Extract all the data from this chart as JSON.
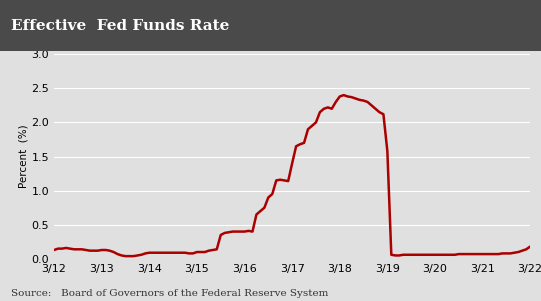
{
  "title": "Effective  Fed Funds Rate",
  "ylabel": "Percent  (%)",
  "source_text": "Source:   Board of Governors of the Federal Reserve System",
  "title_bg_color": "#4a4a4a",
  "title_text_color": "#ffffff",
  "line_color": "#aa0000",
  "plot_bg_color": "#e0e0e0",
  "axes_bg_color": "#e0e0e0",
  "grid_color": "#ffffff",
  "ylim": [
    0.0,
    3.0
  ],
  "yticks": [
    0.0,
    0.5,
    1.0,
    1.5,
    2.0,
    2.5,
    3.0
  ],
  "xtick_labels": [
    "3/12",
    "3/13",
    "3/14",
    "3/15",
    "3/16",
    "3/17",
    "3/18",
    "3/19",
    "3/20",
    "3/21",
    "3/22"
  ],
  "x_values": [
    0,
    0.083,
    0.167,
    0.25,
    0.333,
    0.417,
    0.5,
    0.583,
    0.667,
    0.75,
    0.833,
    0.917,
    1.0,
    1.083,
    1.167,
    1.25,
    1.333,
    1.417,
    1.5,
    1.583,
    1.667,
    1.75,
    1.833,
    1.917,
    2.0,
    2.083,
    2.167,
    2.25,
    2.333,
    2.417,
    2.5,
    2.583,
    2.667,
    2.75,
    2.833,
    2.917,
    3.0,
    3.083,
    3.167,
    3.25,
    3.333,
    3.417,
    3.5,
    3.583,
    3.667,
    3.75,
    3.833,
    3.917,
    4.0,
    4.083,
    4.167,
    4.25,
    4.333,
    4.417,
    4.5,
    4.583,
    4.667,
    4.75,
    4.833,
    4.917,
    5.0,
    5.083,
    5.167,
    5.25,
    5.333,
    5.417,
    5.5,
    5.583,
    5.667,
    5.75,
    5.833,
    5.917,
    6.0,
    6.083,
    6.167,
    6.25,
    6.333,
    6.417,
    6.5,
    6.583,
    6.667,
    6.75,
    6.833,
    6.917,
    7.0,
    7.083,
    7.167,
    7.25,
    7.333,
    7.417,
    7.5,
    7.583,
    7.667,
    7.75,
    7.833,
    7.917,
    8.0,
    8.083,
    8.167,
    8.25,
    8.333,
    8.417,
    8.5,
    8.583,
    8.667,
    8.75,
    8.833,
    8.917,
    9.0,
    9.083,
    9.167,
    9.25,
    9.333,
    9.417,
    9.5,
    9.583,
    9.667,
    9.75,
    9.833,
    9.917,
    10.0
  ],
  "y_values": [
    0.13,
    0.15,
    0.15,
    0.16,
    0.15,
    0.14,
    0.14,
    0.14,
    0.13,
    0.12,
    0.12,
    0.12,
    0.13,
    0.13,
    0.12,
    0.1,
    0.07,
    0.05,
    0.04,
    0.04,
    0.04,
    0.05,
    0.06,
    0.08,
    0.09,
    0.09,
    0.09,
    0.09,
    0.09,
    0.09,
    0.09,
    0.09,
    0.09,
    0.09,
    0.08,
    0.08,
    0.1,
    0.1,
    0.1,
    0.12,
    0.13,
    0.14,
    0.35,
    0.38,
    0.39,
    0.4,
    0.4,
    0.4,
    0.4,
    0.41,
    0.4,
    0.65,
    0.7,
    0.75,
    0.9,
    0.95,
    1.15,
    1.16,
    1.15,
    1.14,
    1.4,
    1.65,
    1.68,
    1.7,
    1.9,
    1.95,
    2.0,
    2.15,
    2.2,
    2.22,
    2.2,
    2.3,
    2.38,
    2.4,
    2.38,
    2.37,
    2.35,
    2.33,
    2.32,
    2.3,
    2.25,
    2.2,
    2.15,
    2.12,
    1.58,
    0.06,
    0.05,
    0.05,
    0.06,
    0.06,
    0.06,
    0.06,
    0.06,
    0.06,
    0.06,
    0.06,
    0.06,
    0.06,
    0.06,
    0.06,
    0.06,
    0.06,
    0.07,
    0.07,
    0.07,
    0.07,
    0.07,
    0.07,
    0.07,
    0.07,
    0.07,
    0.07,
    0.07,
    0.08,
    0.08,
    0.08,
    0.09,
    0.1,
    0.12,
    0.14,
    0.18
  ],
  "xtick_positions": [
    0,
    1,
    2,
    3,
    4,
    5,
    6,
    7,
    8,
    9,
    10
  ],
  "line_width": 1.8,
  "figsize": [
    5.41,
    3.01
  ],
  "dpi": 100
}
